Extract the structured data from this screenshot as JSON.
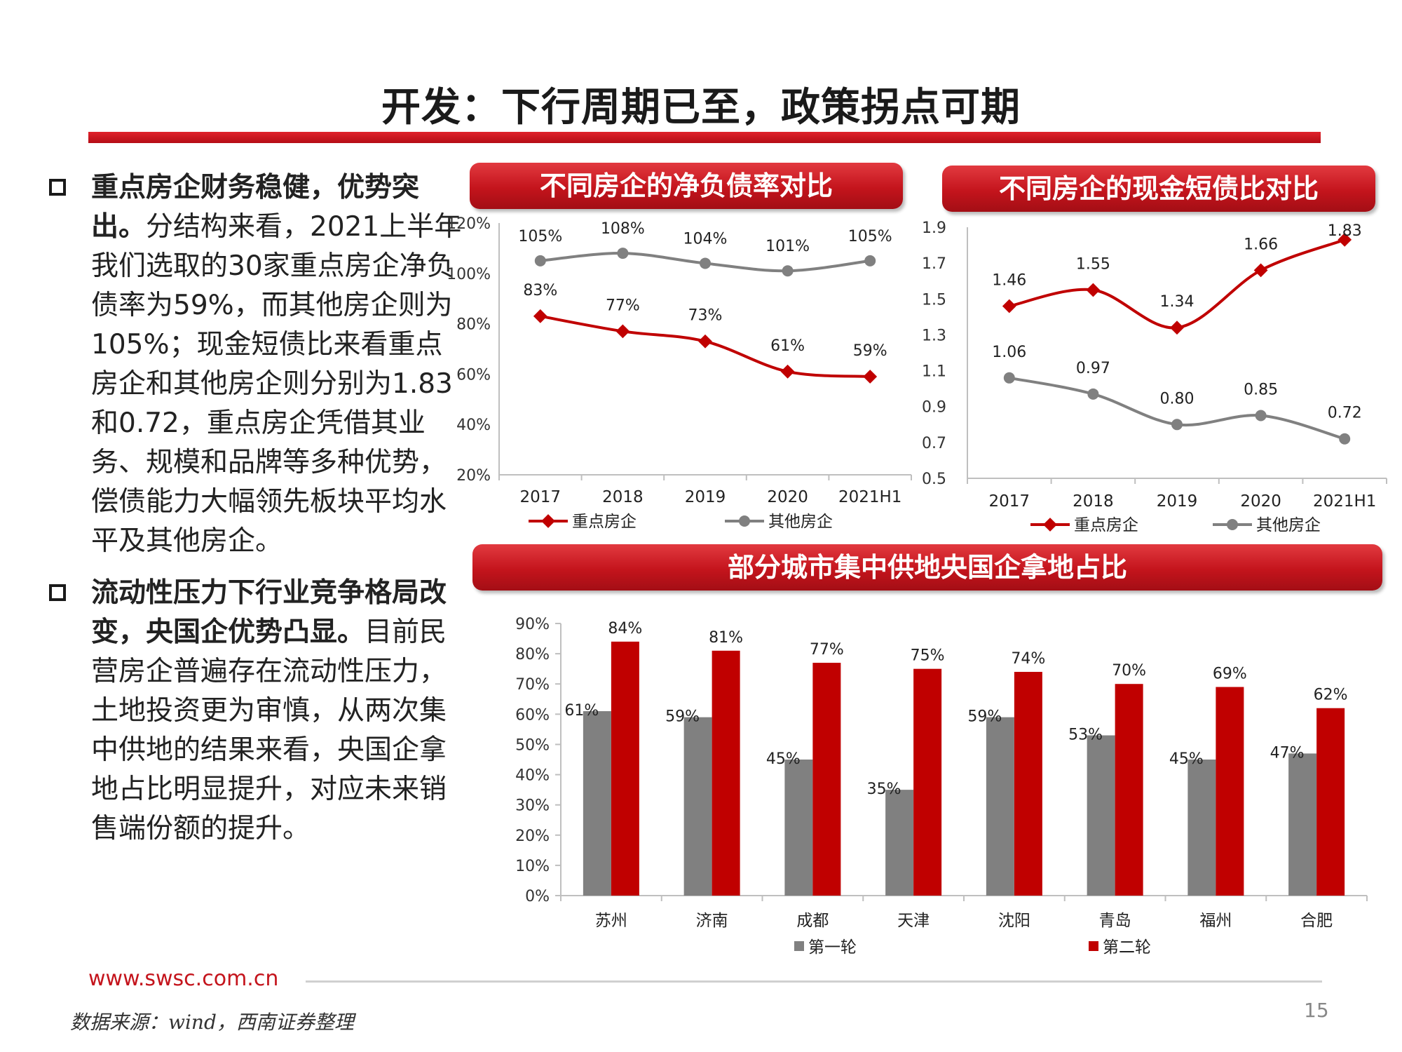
{
  "title": "开发：下行周期已至，政策拐点可期",
  "bullets": [
    {
      "bold": "重点房企财务稳健，优势突出。",
      "text": "分结构来看，2021上半年我们选取的30家重点房企净负债率为59%，而其他房企则为105%；现金短债比来看重点房企和其他房企则分别为1.83和0.72，重点房企凭借其业务、规模和品牌等多种优势，偿债能力大幅领先板块平均水平及其他房企。"
    },
    {
      "bold": "流动性压力下行业竞争格局改变，央国企优势凸显。",
      "text": "目前民营房企普遍存在流动性压力，土地投资更为审慎，从两次集中供地的结果来看，央国企拿地占比明显提升，对应未来销售端份额的提升。"
    }
  ],
  "banners": {
    "chart1": "不同房企的净负债率对比",
    "chart2": "不同房企的现金短债比对比",
    "chart3": "部分城市集中供地央国企拿地占比"
  },
  "colors": {
    "red": "#c00000",
    "gray": "#808080",
    "accent": "#e0222b"
  },
  "chart_data": [
    {
      "type": "line",
      "title": "不同房企的净负债率对比",
      "categories": [
        "2017",
        "2018",
        "2019",
        "2020",
        "2021H1"
      ],
      "series": [
        {
          "name": "重点房企",
          "values": [
            83,
            77,
            73,
            61,
            59
          ],
          "labels": [
            "83%",
            "77%",
            "73%",
            "61%",
            "59%"
          ],
          "color": "#c00000"
        },
        {
          "name": "其他房企",
          "values": [
            105,
            108,
            104,
            101,
            105
          ],
          "labels": [
            "105%",
            "108%",
            "104%",
            "101%",
            "105%"
          ],
          "color": "#808080"
        }
      ],
      "yticks": [
        "20%",
        "40%",
        "60%",
        "80%",
        "100%",
        "120%"
      ],
      "ylim": [
        20,
        120
      ],
      "legend": "bottom"
    },
    {
      "type": "line",
      "title": "不同房企的现金短债比对比",
      "categories": [
        "2017",
        "2018",
        "2019",
        "2020",
        "2021H1"
      ],
      "series": [
        {
          "name": "重点房企",
          "values": [
            1.46,
            1.55,
            1.34,
            1.66,
            1.83
          ],
          "labels": [
            "1.46",
            "1.55",
            "1.34",
            "1.66",
            "1.83"
          ],
          "color": "#c00000"
        },
        {
          "name": "其他房企",
          "values": [
            1.06,
            0.97,
            0.8,
            0.85,
            0.72
          ],
          "labels": [
            "1.06",
            "0.97",
            "0.80",
            "0.85",
            "0.72"
          ],
          "color": "#808080"
        }
      ],
      "yticks": [
        "0.5",
        "0.7",
        "0.9",
        "1.1",
        "1.3",
        "1.5",
        "1.7",
        "1.9"
      ],
      "ylim": [
        0.5,
        1.9
      ],
      "legend": "bottom"
    },
    {
      "type": "bar",
      "title": "部分城市集中供地央国企拿地占比",
      "categories": [
        "苏州",
        "济南",
        "成都",
        "天津",
        "沈阳",
        "青岛",
        "福州",
        "合肥"
      ],
      "series": [
        {
          "name": "第一轮",
          "values": [
            61,
            59,
            45,
            35,
            59,
            53,
            45,
            47
          ],
          "labels": [
            "61%",
            "59%",
            "45%",
            "35%",
            "59%",
            "53%",
            "45%",
            "47%"
          ],
          "color": "#808080"
        },
        {
          "name": "第二轮",
          "values": [
            84,
            81,
            77,
            75,
            74,
            70,
            69,
            62
          ],
          "labels": [
            "84%",
            "81%",
            "77%",
            "75%",
            "74%",
            "70%",
            "69%",
            "62%"
          ],
          "color": "#c00000"
        }
      ],
      "yticks": [
        "0%",
        "10%",
        "20%",
        "30%",
        "40%",
        "50%",
        "60%",
        "70%",
        "80%",
        "90%"
      ],
      "ylim": [
        0,
        90
      ],
      "legend": "bottom"
    }
  ],
  "footer": {
    "url": "www.swsc.com.cn",
    "source": "数据来源：wind，西南证券整理",
    "page": "15"
  }
}
